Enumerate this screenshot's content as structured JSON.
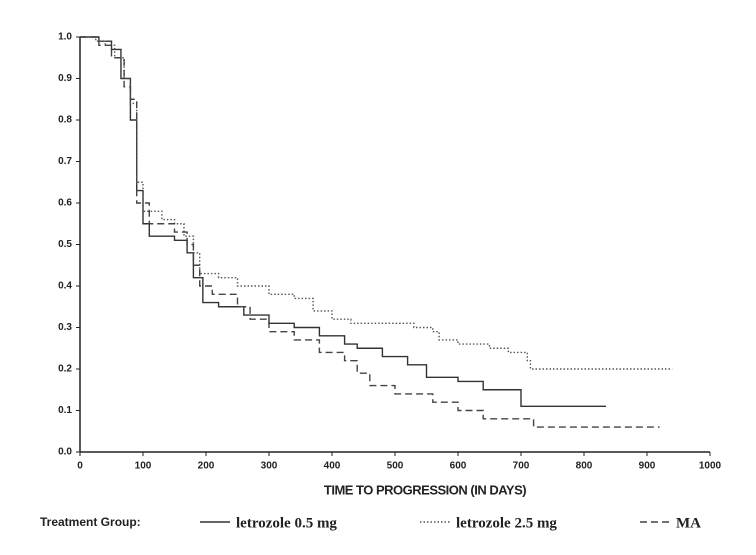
{
  "chart_data": {
    "type": "line",
    "step": true,
    "xlabel": "TIME TO PROGRESSION (IN DAYS)",
    "legend_title": "Treatment Group:",
    "xlim": [
      0,
      1000
    ],
    "xticks": [
      0,
      100,
      200,
      300,
      400,
      500,
      600,
      700,
      800,
      900,
      1000
    ],
    "ylim": [
      0,
      1
    ],
    "yticks": [
      {
        "value": 0,
        "label": "0.0"
      },
      0.1,
      0.2,
      0.3,
      0.4,
      0.5,
      0.6,
      0.7,
      0.8,
      0.9,
      {
        "value": 1,
        "label": "1.0"
      }
    ],
    "series": [
      {
        "name": "letrozole 0.5 mg",
        "color": "#333333",
        "dash": "solid",
        "x": [
          0,
          30,
          50,
          65,
          80,
          90,
          100,
          110,
          150,
          170,
          180,
          195,
          220,
          260,
          300,
          340,
          380,
          420,
          440,
          480,
          520,
          550,
          600,
          640,
          700,
          835
        ],
        "values": [
          1.0,
          0.99,
          0.97,
          0.9,
          0.8,
          0.63,
          0.55,
          0.52,
          0.51,
          0.48,
          0.42,
          0.36,
          0.35,
          0.33,
          0.31,
          0.3,
          0.28,
          0.26,
          0.25,
          0.23,
          0.21,
          0.18,
          0.17,
          0.15,
          0.11,
          0.11
        ]
      },
      {
        "name": "letrozole 2.5 mg",
        "color": "#555555",
        "dash": "dotted",
        "x": [
          0,
          25,
          40,
          55,
          70,
          80,
          90,
          100,
          130,
          150,
          165,
          180,
          190,
          220,
          250,
          300,
          340,
          370,
          400,
          430,
          530,
          560,
          570,
          600,
          650,
          680,
          710,
          715,
          940
        ],
        "values": [
          1.0,
          0.99,
          0.98,
          0.95,
          0.9,
          0.84,
          0.65,
          0.58,
          0.56,
          0.55,
          0.52,
          0.48,
          0.43,
          0.42,
          0.4,
          0.38,
          0.37,
          0.34,
          0.32,
          0.31,
          0.3,
          0.29,
          0.27,
          0.26,
          0.25,
          0.24,
          0.22,
          0.2,
          0.2
        ]
      },
      {
        "name": "MA",
        "color": "#444444",
        "dash": "dashed",
        "x": [
          0,
          30,
          50,
          70,
          80,
          90,
          110,
          150,
          170,
          180,
          190,
          210,
          250,
          270,
          300,
          340,
          380,
          420,
          440,
          460,
          500,
          560,
          600,
          640,
          720,
          920
        ],
        "values": [
          1.0,
          0.98,
          0.95,
          0.88,
          0.85,
          0.6,
          0.55,
          0.53,
          0.5,
          0.45,
          0.4,
          0.38,
          0.35,
          0.32,
          0.29,
          0.27,
          0.24,
          0.22,
          0.19,
          0.16,
          0.14,
          0.12,
          0.1,
          0.08,
          0.06,
          0.06
        ]
      }
    ]
  }
}
